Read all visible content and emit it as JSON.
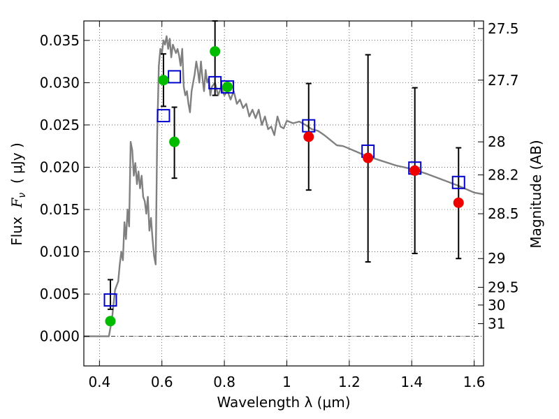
{
  "chart_data": {
    "type": "scatter",
    "xlabel": "Wavelength  λ (μm)",
    "ylabel": "Flux  F_ν  ( μJy )",
    "ylabel_parts": {
      "pre": "Flux  ",
      "sym": "F",
      "sub": "ν",
      "post": "  ( μJy )"
    },
    "ylabel_right": "Magnitude (AB)",
    "xlim": [
      0.35,
      1.63
    ],
    "ylim": [
      -0.0035,
      0.0373
    ],
    "grid": true,
    "x_ticks": [
      0.4,
      0.6,
      0.8,
      1.0,
      1.2,
      1.4,
      1.6
    ],
    "x_tick_labels": [
      "0.4",
      "0.6",
      "0.8",
      "1",
      "1.2",
      "1.4",
      "1.6"
    ],
    "y_ticks": [
      0.0,
      0.005,
      0.01,
      0.015,
      0.02,
      0.025,
      0.03,
      0.035
    ],
    "y_tick_labels": [
      "0.000",
      "0.005",
      "0.010",
      "0.015",
      "0.020",
      "0.025",
      "0.030",
      "0.035"
    ],
    "right_ticks": [
      {
        "label": "27.5",
        "flux": 0.0364
      },
      {
        "label": "27.7",
        "flux": 0.0303
      },
      {
        "label": "28",
        "flux": 0.023
      },
      {
        "label": "28.2",
        "flux": 0.0191
      },
      {
        "label": "28.5",
        "flux": 0.0145
      },
      {
        "label": "29",
        "flux": 0.0092
      },
      {
        "label": "29.5",
        "flux": 0.0058
      },
      {
        "label": "30",
        "flux": 0.0037
      },
      {
        "label": "31",
        "flux": 0.0015
      }
    ],
    "series": [
      {
        "kind": "model",
        "color": "#808080",
        "x": [
          0.35,
          0.43,
          0.44,
          0.45,
          0.455,
          0.46,
          0.465,
          0.47,
          0.475,
          0.48,
          0.485,
          0.49,
          0.495,
          0.5,
          0.505,
          0.51,
          0.515,
          0.52,
          0.525,
          0.53,
          0.535,
          0.54,
          0.545,
          0.55,
          0.555,
          0.56,
          0.565,
          0.57,
          0.575,
          0.58,
          0.585,
          0.59,
          0.595,
          0.6,
          0.605,
          0.61,
          0.615,
          0.62,
          0.625,
          0.63,
          0.635,
          0.64,
          0.645,
          0.65,
          0.655,
          0.66,
          0.665,
          0.67,
          0.675,
          0.68,
          0.685,
          0.69,
          0.695,
          0.7,
          0.705,
          0.71,
          0.715,
          0.72,
          0.725,
          0.73,
          0.735,
          0.74,
          0.745,
          0.75,
          0.755,
          0.76,
          0.77,
          0.78,
          0.79,
          0.8,
          0.81,
          0.82,
          0.83,
          0.84,
          0.85,
          0.86,
          0.87,
          0.88,
          0.89,
          0.9,
          0.91,
          0.92,
          0.93,
          0.94,
          0.95,
          0.96,
          0.97,
          0.98,
          0.99,
          1.0,
          1.02,
          1.04,
          1.06,
          1.08,
          1.1,
          1.12,
          1.14,
          1.16,
          1.18,
          1.2,
          1.25,
          1.3,
          1.35,
          1.4,
          1.45,
          1.5,
          1.55,
          1.6,
          1.63
        ],
        "y": [
          0.0,
          0.0,
          0.002,
          0.0055,
          0.006,
          0.0065,
          0.0085,
          0.01,
          0.009,
          0.0135,
          0.0115,
          0.015,
          0.013,
          0.023,
          0.022,
          0.019,
          0.0205,
          0.018,
          0.0195,
          0.0175,
          0.019,
          0.0165,
          0.016,
          0.0145,
          0.0165,
          0.0125,
          0.014,
          0.0115,
          0.0095,
          0.0085,
          0.024,
          0.032,
          0.034,
          0.0335,
          0.035,
          0.0345,
          0.0355,
          0.034,
          0.0352,
          0.033,
          0.0345,
          0.034,
          0.0335,
          0.034,
          0.0332,
          0.032,
          0.034,
          0.0295,
          0.0285,
          0.029,
          0.0275,
          0.0265,
          0.029,
          0.03,
          0.031,
          0.0325,
          0.0315,
          0.03,
          0.0325,
          0.0305,
          0.029,
          0.0315,
          0.03,
          0.0305,
          0.0285,
          0.0295,
          0.03,
          0.0285,
          0.0295,
          0.0285,
          0.029,
          0.028,
          0.029,
          0.0275,
          0.028,
          0.027,
          0.0275,
          0.026,
          0.0268,
          0.0258,
          0.0268,
          0.025,
          0.026,
          0.0245,
          0.0248,
          0.0238,
          0.026,
          0.0248,
          0.0246,
          0.0255,
          0.0252,
          0.0254,
          0.025,
          0.0245,
          0.0243,
          0.0238,
          0.0232,
          0.0226,
          0.0225,
          0.0222,
          0.0214,
          0.0208,
          0.0202,
          0.0198,
          0.0192,
          0.0185,
          0.0178,
          0.017,
          0.0168
        ]
      },
      {
        "kind": "model-boxes",
        "marker": "square",
        "color": "#0000cc",
        "x": [
          0.435,
          0.605,
          0.64,
          0.77,
          0.81,
          1.07,
          1.26,
          1.41,
          1.55
        ],
        "y": [
          0.0043,
          0.0261,
          0.0307,
          0.03,
          0.0295,
          0.0249,
          0.0219,
          0.0199,
          0.0182
        ]
      },
      {
        "kind": "observed",
        "marker": "circle",
        "color": "#00bb00",
        "x": [
          0.435,
          0.605,
          0.64,
          0.77,
          0.81
        ],
        "y": [
          0.0018,
          0.0303,
          0.023,
          0.0337,
          0.0295
        ],
        "err_low": [
          0.0032,
          0.0272,
          0.0187,
          0.0285,
          null
        ],
        "err_high": [
          0.0067,
          0.0334,
          0.0271,
          0.0373,
          null
        ]
      },
      {
        "kind": "observed",
        "marker": "circle",
        "color": "#ee0000",
        "x": [
          1.07,
          1.26,
          1.41,
          1.55
        ],
        "y": [
          0.0236,
          0.0211,
          0.0196,
          0.0158
        ],
        "err_low": [
          0.0173,
          0.0088,
          0.0098,
          0.0092
        ],
        "err_high": [
          0.0299,
          0.0333,
          0.0294,
          0.0223
        ]
      }
    ]
  }
}
